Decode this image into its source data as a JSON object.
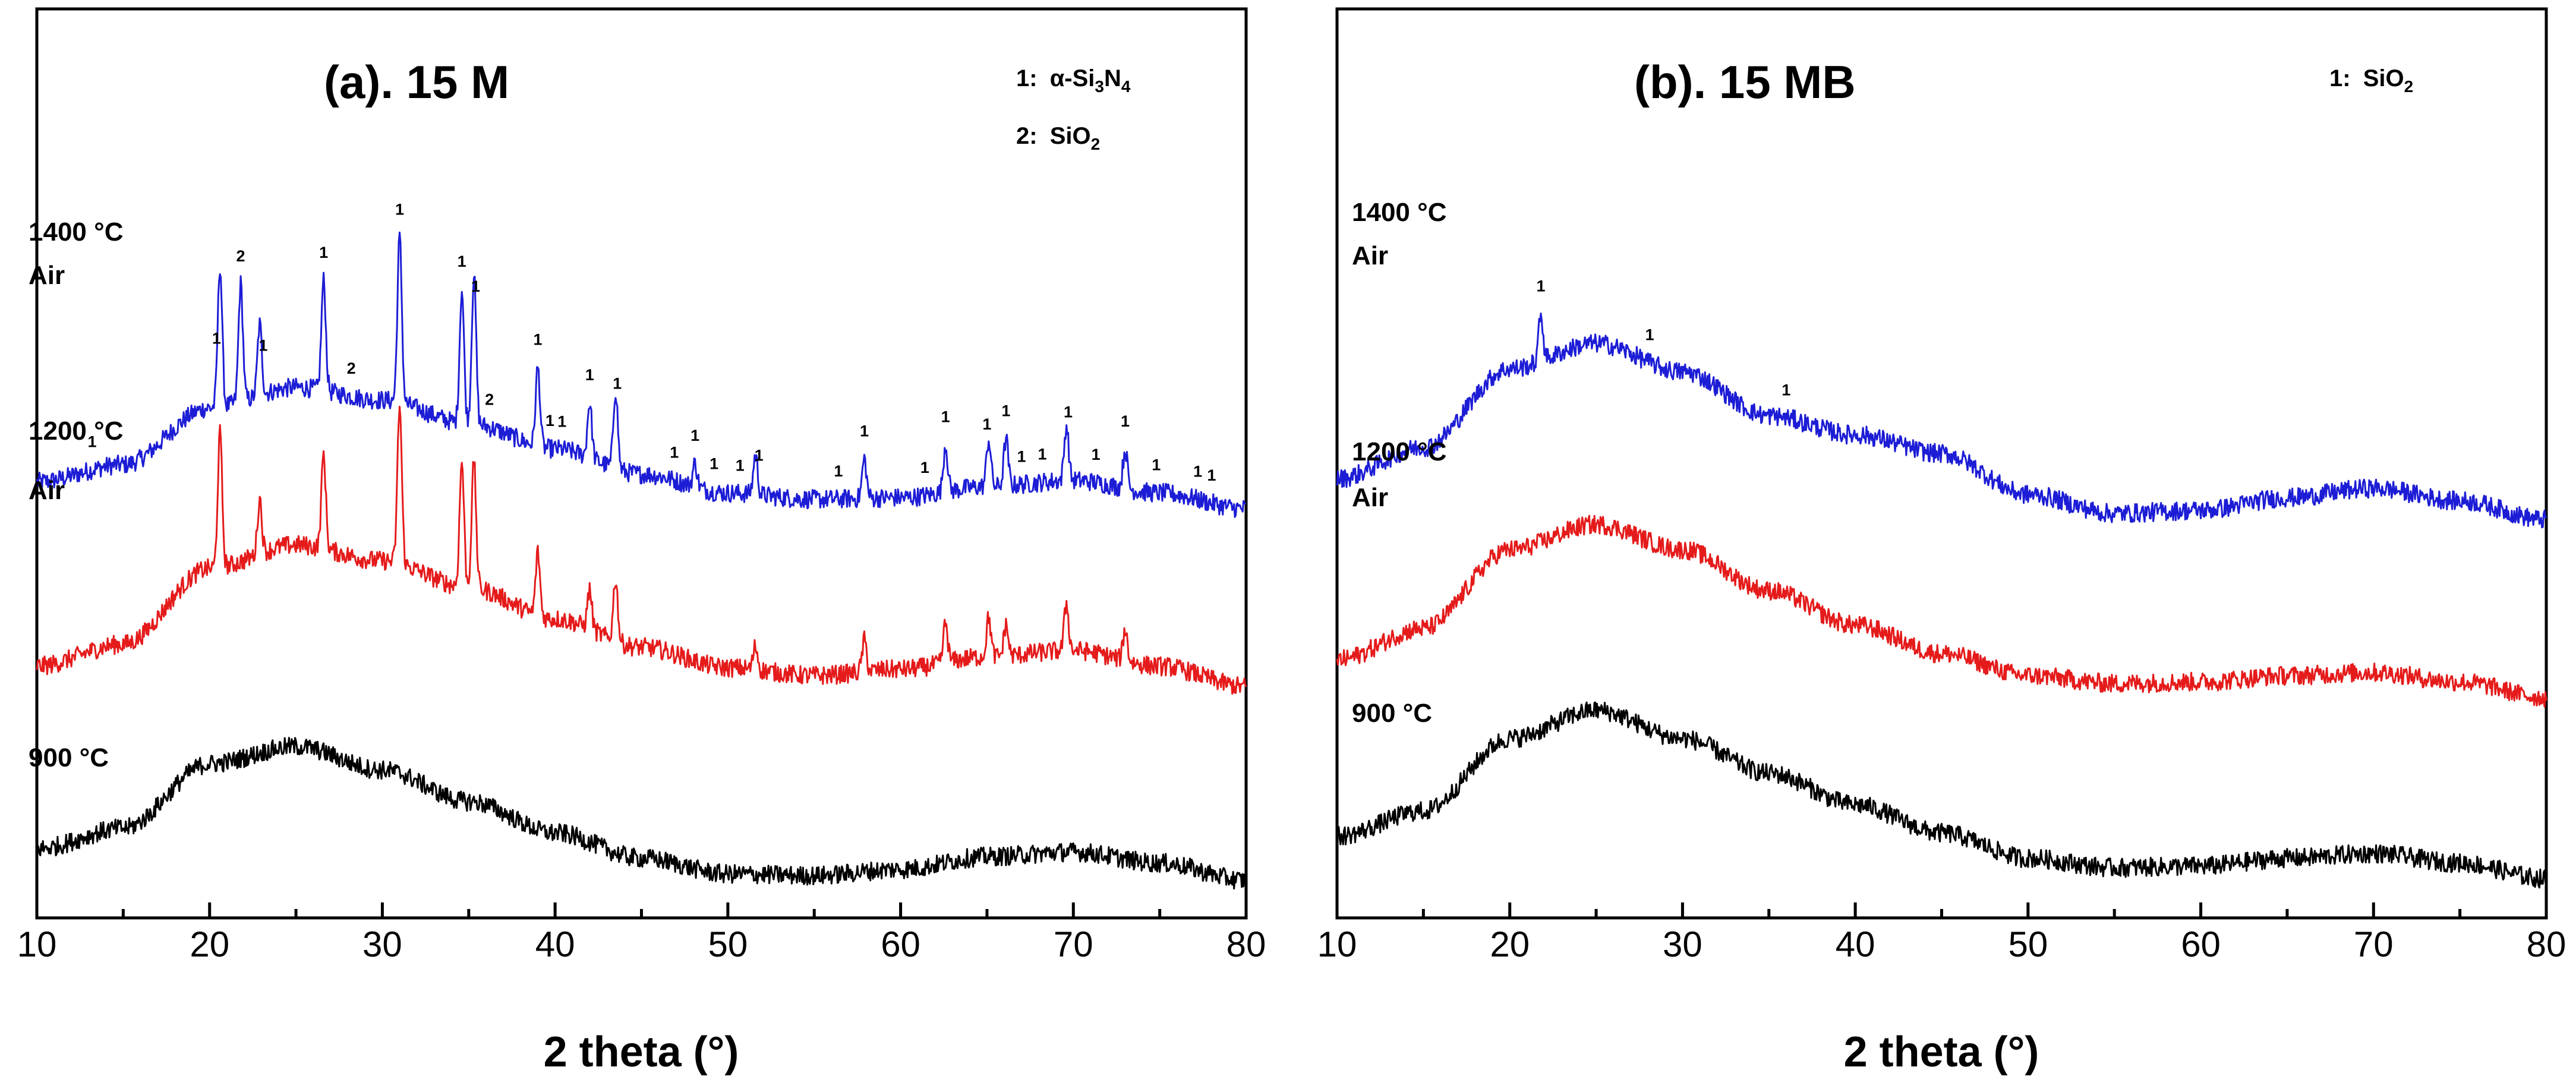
{
  "chart_data": [
    {
      "type": "line",
      "title": "(a). 15 M",
      "xlabel": "2 theta (°)",
      "ylabel": "",
      "xlim": [
        10,
        80
      ],
      "x_ticks": [
        "10",
        "20",
        "30",
        "40",
        "50",
        "60",
        "70",
        "80"
      ],
      "y_ticks": [],
      "grid": false,
      "legend_position": "top-right",
      "legend": [
        {
          "number": "1:",
          "phase": "α-Si",
          "sub1": "3",
          "mid": "N",
          "sub2": "4"
        },
        {
          "number": "2:",
          "phase": "SiO",
          "sub1": "2",
          "mid": "",
          "sub2": ""
        }
      ],
      "series": [
        {
          "name": "1400 °C Air",
          "label_lines": [
            "1400 °C",
            "Air"
          ],
          "color": "#1d1dd6",
          "offset": 2.2,
          "x": [
            10,
            15,
            20,
            25,
            30,
            35,
            40,
            45,
            50,
            55,
            60,
            65,
            70,
            75,
            80
          ],
          "values": [
            0.55,
            0.66,
            1.02,
            1.15,
            1.07,
            0.92,
            0.76,
            0.6,
            0.48,
            0.44,
            0.45,
            0.52,
            0.56,
            0.48,
            0.38
          ],
          "peaks": [
            [
              20.6,
              0.9
            ],
            [
              21.8,
              0.75
            ],
            [
              22.9,
              0.45
            ],
            [
              26.6,
              0.7
            ],
            [
              31.0,
              1.05
            ],
            [
              34.6,
              0.85
            ],
            [
              35.3,
              0.95
            ],
            [
              39.0,
              0.5
            ],
            [
              42.0,
              0.35
            ],
            [
              43.5,
              0.5
            ],
            [
              48.1,
              0.15
            ],
            [
              51.6,
              0.25
            ],
            [
              57.9,
              0.25
            ],
            [
              62.6,
              0.3
            ],
            [
              65.1,
              0.3
            ],
            [
              66.1,
              0.3
            ],
            [
              69.6,
              0.35
            ],
            [
              73.0,
              0.25
            ]
          ],
          "peak_labels": [
            {
              "x": 13.2,
              "label": "1"
            },
            {
              "x": 20.4,
              "label": "1"
            },
            {
              "x": 21.8,
              "label": "2"
            },
            {
              "x": 23.1,
              "label": "1"
            },
            {
              "x": 26.6,
              "label": "1"
            },
            {
              "x": 28.2,
              "label": "2"
            },
            {
              "x": 31.0,
              "label": "1"
            },
            {
              "x": 34.6,
              "label": "1"
            },
            {
              "x": 35.4,
              "label": "1"
            },
            {
              "x": 36.2,
              "label": "2"
            },
            {
              "x": 39.0,
              "label": "1"
            },
            {
              "x": 39.7,
              "label": "1"
            },
            {
              "x": 40.4,
              "label": "1"
            },
            {
              "x": 42.0,
              "label": "1"
            },
            {
              "x": 43.6,
              "label": "1"
            },
            {
              "x": 46.9,
              "label": "1"
            },
            {
              "x": 48.1,
              "label": "1"
            },
            {
              "x": 49.2,
              "label": "1"
            },
            {
              "x": 50.7,
              "label": "1"
            },
            {
              "x": 51.8,
              "label": "1"
            },
            {
              "x": 56.4,
              "label": "1"
            },
            {
              "x": 57.9,
              "label": "1"
            },
            {
              "x": 61.4,
              "label": "1"
            },
            {
              "x": 62.6,
              "label": "1"
            },
            {
              "x": 65.0,
              "label": "1"
            },
            {
              "x": 66.1,
              "label": "1"
            },
            {
              "x": 67.0,
              "label": "1"
            },
            {
              "x": 68.2,
              "label": "1"
            },
            {
              "x": 69.7,
              "label": "1"
            },
            {
              "x": 71.3,
              "label": "1"
            },
            {
              "x": 73.0,
              "label": "1"
            },
            {
              "x": 74.8,
              "label": "1"
            },
            {
              "x": 77.2,
              "label": "1"
            },
            {
              "x": 78.0,
              "label": "1"
            }
          ]
        },
        {
          "name": "1200 °C Air",
          "label_lines": [
            "1200 °C",
            "Air"
          ],
          "color": "#e51b1b",
          "offset": 1.1,
          "x": [
            10,
            15,
            20,
            25,
            30,
            35,
            40,
            45,
            50,
            55,
            60,
            65,
            70,
            75,
            80
          ],
          "values": [
            0.48,
            0.62,
            1.1,
            1.25,
            1.15,
            0.98,
            0.78,
            0.6,
            0.47,
            0.42,
            0.46,
            0.54,
            0.58,
            0.48,
            0.35
          ],
          "peaks": [
            [
              20.6,
              0.85
            ],
            [
              22.9,
              0.35
            ],
            [
              26.6,
              0.6
            ],
            [
              31.0,
              1.0
            ],
            [
              34.6,
              0.8
            ],
            [
              35.3,
              0.8
            ],
            [
              39.0,
              0.4
            ],
            [
              42.0,
              0.25
            ],
            [
              43.5,
              0.4
            ],
            [
              51.6,
              0.15
            ],
            [
              57.9,
              0.2
            ],
            [
              62.6,
              0.25
            ],
            [
              65.1,
              0.25
            ],
            [
              66.1,
              0.2
            ],
            [
              69.6,
              0.3
            ],
            [
              73.0,
              0.2
            ]
          ]
        },
        {
          "name": "900 °C",
          "label_lines": [
            "900 °C"
          ],
          "color": "#000000",
          "offset": 0,
          "x": [
            10,
            15,
            20,
            25,
            30,
            35,
            40,
            45,
            50,
            55,
            60,
            65,
            70,
            75,
            80
          ],
          "values": [
            0.42,
            0.55,
            0.96,
            1.07,
            0.92,
            0.72,
            0.52,
            0.36,
            0.26,
            0.25,
            0.29,
            0.37,
            0.4,
            0.33,
            0.22
          ],
          "peaks": []
        }
      ]
    },
    {
      "type": "line",
      "title": "(b). 15 MB",
      "xlabel": "2 theta (°)",
      "ylabel": "",
      "xlim": [
        10,
        80
      ],
      "x_ticks": [
        "10",
        "20",
        "30",
        "40",
        "50",
        "60",
        "70",
        "80"
      ],
      "y_ticks": [],
      "grid": false,
      "legend_position": "top-right",
      "legend": [
        {
          "number": "1:",
          "phase": "SiO",
          "sub1": "2",
          "mid": "",
          "sub2": ""
        }
      ],
      "series": [
        {
          "name": "1400 °C Air",
          "label_lines": [
            "1400 °C",
            "Air"
          ],
          "color": "#1d1dd6",
          "offset": 2.15,
          "x": [
            10,
            15,
            20,
            25,
            30,
            35,
            40,
            45,
            50,
            55,
            60,
            65,
            70,
            75,
            80
          ],
          "values": [
            0.62,
            0.82,
            1.32,
            1.48,
            1.3,
            1.02,
            0.9,
            0.78,
            0.52,
            0.4,
            0.42,
            0.5,
            0.56,
            0.48,
            0.36
          ],
          "peaks": [
            [
              21.8,
              0.3
            ]
          ],
          "peak_labels": [
            {
              "x": 21.8,
              "label": "1"
            },
            {
              "x": 28.1,
              "label": "1"
            },
            {
              "x": 36.0,
              "label": "1"
            }
          ]
        },
        {
          "name": "1200 °C Air",
          "label_lines": [
            "1200 °C",
            "Air"
          ],
          "color": "#e51b1b",
          "offset": 1.1,
          "x": [
            10,
            15,
            20,
            25,
            30,
            35,
            40,
            45,
            50,
            55,
            60,
            65,
            70,
            75,
            80
          ],
          "values": [
            0.52,
            0.72,
            1.22,
            1.38,
            1.22,
            0.96,
            0.74,
            0.56,
            0.42,
            0.37,
            0.38,
            0.42,
            0.44,
            0.38,
            0.28
          ],
          "peaks": []
        },
        {
          "name": "900 °C",
          "label_lines": [
            "900 °C"
          ],
          "color": "#000000",
          "offset": 0,
          "x": [
            10,
            15,
            20,
            25,
            30,
            35,
            40,
            45,
            50,
            55,
            60,
            65,
            70,
            75,
            80
          ],
          "values": [
            0.5,
            0.66,
            1.12,
            1.3,
            1.12,
            0.9,
            0.7,
            0.52,
            0.36,
            0.3,
            0.31,
            0.36,
            0.39,
            0.33,
            0.23
          ],
          "peaks": []
        }
      ]
    }
  ]
}
